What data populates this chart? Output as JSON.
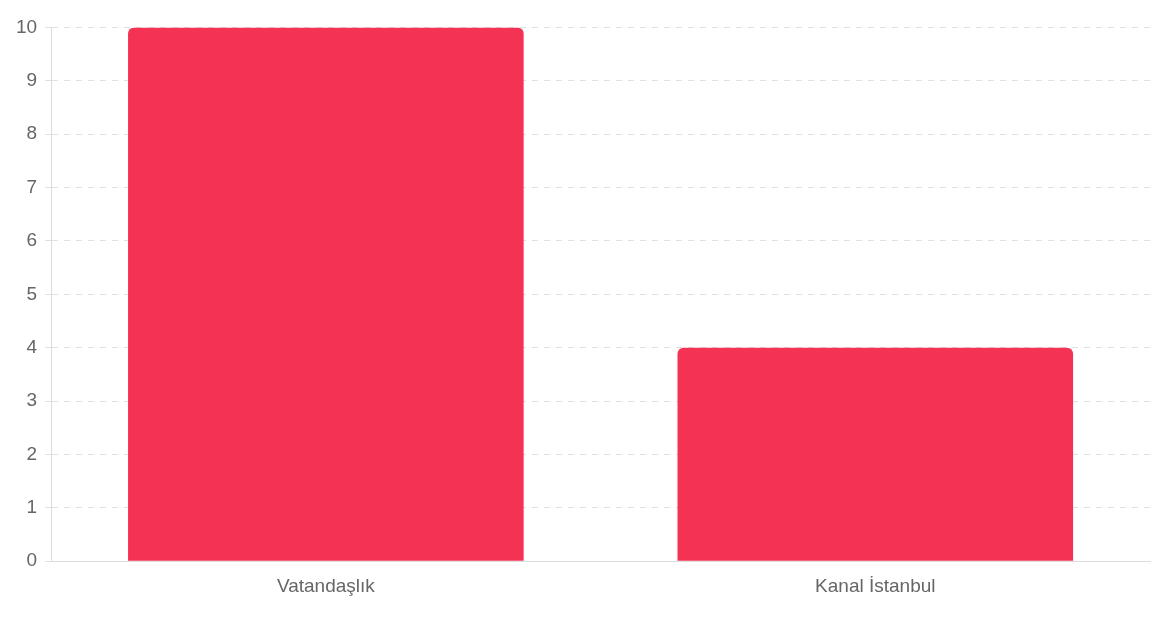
{
  "chart_data": {
    "type": "bar",
    "categories": [
      "Vatandaşlık",
      "Kanal İstanbul"
    ],
    "values": [
      10,
      4
    ],
    "color": "#f43254",
    "ylim": [
      0,
      10
    ],
    "yticks": [
      0,
      1,
      2,
      3,
      4,
      5,
      6,
      7,
      8,
      9,
      10
    ],
    "grid": "y"
  }
}
